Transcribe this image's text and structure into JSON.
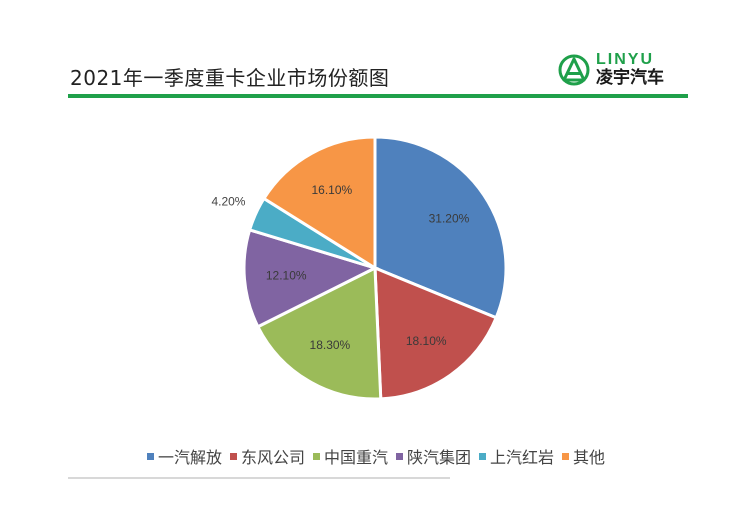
{
  "header": {
    "title": "2021年一季度重卡企业市场份额图",
    "logo_en": "LINYU",
    "logo_cn": "凌宇汽车",
    "accent_color": "#1fa04a"
  },
  "chart_data": {
    "type": "pie",
    "title": "2021年一季度重卡企业市场份额图",
    "categories": [
      "一汽解放",
      "东风公司",
      "中国重汽",
      "陕汽集团",
      "上汽红岩",
      "其他"
    ],
    "values": [
      31.2,
      18.1,
      18.3,
      12.1,
      4.2,
      16.1
    ],
    "labels": [
      "31.20%",
      "18.10%",
      "18.30%",
      "12.10%",
      "4.20%",
      "16.10%"
    ],
    "colors": [
      "#4f81bd",
      "#c0504d",
      "#9bbb59",
      "#8064a2",
      "#4bacc6",
      "#f79646"
    ],
    "legend_position": "bottom",
    "start_angle": "top, clockwise"
  },
  "legend": {
    "items": [
      {
        "label": "一汽解放",
        "color": "#4f81bd"
      },
      {
        "label": "东风公司",
        "color": "#c0504d"
      },
      {
        "label": "中国重汽",
        "color": "#9bbb59"
      },
      {
        "label": "陕汽集团",
        "color": "#8064a2"
      },
      {
        "label": "上汽红岩",
        "color": "#4bacc6"
      },
      {
        "label": "其他",
        "color": "#f79646"
      }
    ]
  }
}
